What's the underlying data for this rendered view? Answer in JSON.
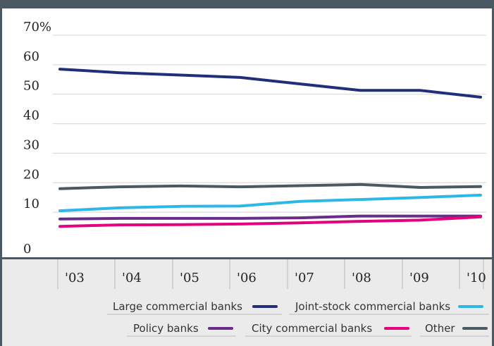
{
  "chart_data": {
    "type": "line",
    "title": "",
    "xlabel": "",
    "ylabel": "",
    "categories": [
      "'03",
      "'04",
      "'05",
      "'06",
      "'07",
      "'08",
      "'09",
      "'10"
    ],
    "y_ticks": [
      "70%",
      "60",
      "50",
      "40",
      "30",
      "20",
      "10",
      "0"
    ],
    "ylim": [
      0,
      70
    ],
    "grid": true,
    "legend_position": "bottom-right",
    "series": [
      {
        "name": "Large commercial banks",
        "color": "#1f2f7a",
        "values": [
          58.5,
          57.3,
          56.5,
          55.7,
          53.5,
          51.3,
          51.3,
          49.0
        ]
      },
      {
        "name": "Joint-stock commercial banks",
        "color": "#2bb8e8",
        "values": [
          10.5,
          11.5,
          12.0,
          12.1,
          13.7,
          14.3,
          15.0,
          15.8
        ]
      },
      {
        "name": "Policy banks",
        "color": "#6a2c8a",
        "values": [
          7.7,
          7.9,
          7.9,
          7.9,
          8.1,
          8.7,
          8.7,
          8.7
        ]
      },
      {
        "name": "City commercial banks",
        "color": "#e5007e",
        "values": [
          5.2,
          5.7,
          5.8,
          6.0,
          6.4,
          6.9,
          7.3,
          8.4
        ]
      },
      {
        "name": "Other",
        "color": "#4a5962",
        "values": [
          18.0,
          18.6,
          18.9,
          18.6,
          19.0,
          19.4,
          18.4,
          18.7
        ]
      }
    ]
  }
}
